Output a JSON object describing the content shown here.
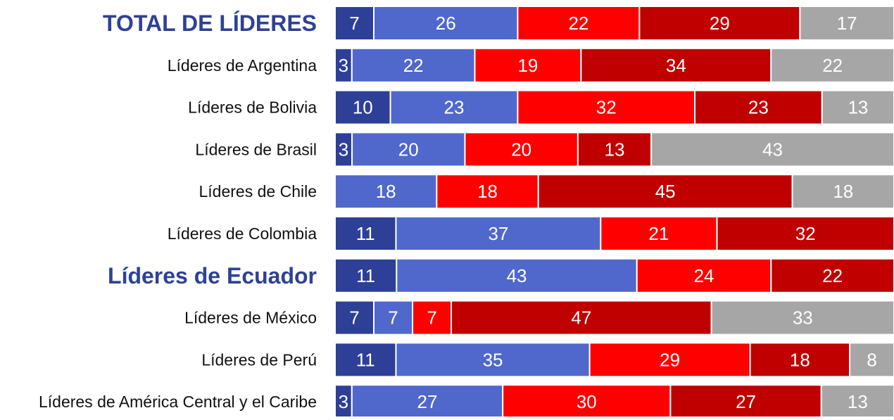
{
  "chart_data": {
    "type": "bar",
    "orientation": "horizontal",
    "stacked": "percent",
    "categories": [
      "TOTAL DE LÍDERES",
      "Líderes de Argentina",
      "Líderes de Bolivia",
      "Líderes de Brasil",
      "Líderes de Chile",
      "Líderes de Colombia",
      "Líderes de Ecuador",
      "Líderes de México",
      "Líderes de Perú",
      "Líderes de América Central y el Caribe"
    ],
    "highlight": [
      0,
      6
    ],
    "highlight_color": "#2e4196",
    "series": [
      {
        "color": "#2e3f98",
        "values": [
          7,
          3,
          10,
          3,
          null,
          11,
          11,
          7,
          11,
          3
        ]
      },
      {
        "color": "#5068cc",
        "values": [
          26,
          22,
          23,
          20,
          18,
          37,
          43,
          7,
          35,
          27
        ]
      },
      {
        "color": "#ff0000",
        "values": [
          22,
          19,
          32,
          20,
          18,
          21,
          24,
          7,
          29,
          30
        ]
      },
      {
        "color": "#c00000",
        "values": [
          29,
          34,
          23,
          13,
          45,
          32,
          22,
          47,
          18,
          27
        ]
      },
      {
        "color": "#a6a6a6",
        "values": [
          17,
          22,
          13,
          43,
          18,
          null,
          null,
          33,
          8,
          13
        ]
      }
    ]
  }
}
